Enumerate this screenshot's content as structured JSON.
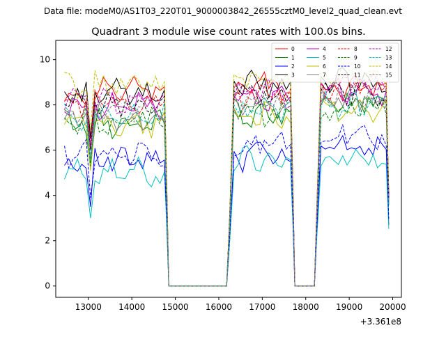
{
  "figure": {
    "suptitle": "Data file: modeM0/AS1T03_220T01_9000003842_26555cztM0_level2_quad_clean.evt"
  },
  "chart_data": {
    "type": "line",
    "title": "Quadrant 3 module wise count rates with 100.0s bins.",
    "xlabel": "",
    "ylabel": "",
    "offset_label": "+3.361e8",
    "xlim": [
      12250,
      20200
    ],
    "ylim": [
      -0.5,
      10.85
    ],
    "xticks": [
      13000,
      14000,
      15000,
      16000,
      17000,
      18000,
      19000,
      20000
    ],
    "xtick_labels": [
      "13000",
      "14000",
      "15000",
      "16000",
      "17000",
      "18000",
      "19000",
      "20000"
    ],
    "yticks": [
      0,
      2,
      4,
      6,
      8,
      10
    ],
    "ytick_labels": [
      "0",
      "2",
      "4",
      "6",
      "8",
      "10"
    ],
    "grid": false,
    "legend": {
      "placement": "top-right",
      "columns": 4
    },
    "segments": [
      {
        "x_start": 12450,
        "x_end": 14750,
        "step": 100
      },
      {
        "x_start": 16250,
        "x_end": 17650,
        "step": 100
      },
      {
        "x_start": 18250,
        "x_end": 19850,
        "step": 100
      }
    ],
    "gap_points": [
      [
        14850,
        0
      ],
      [
        15000,
        0
      ],
      [
        16000,
        0
      ],
      [
        16180,
        0
      ],
      [
        17750,
        0
      ],
      [
        18200,
        0
      ]
    ],
    "series": [
      {
        "name": "0",
        "color": "#ff0000",
        "dash": "solid",
        "level": [
          8.6,
          8.8,
          8.7
        ]
      },
      {
        "name": "1",
        "color": "#008000",
        "dash": "solid",
        "level": [
          7.2,
          7.6,
          8.1
        ]
      },
      {
        "name": "2",
        "color": "#0000ff",
        "dash": "solid",
        "level": [
          5.5,
          5.7,
          6.0
        ]
      },
      {
        "name": "3",
        "color": "#000000",
        "dash": "solid",
        "level": [
          8.5,
          8.9,
          9.0
        ]
      },
      {
        "name": "4",
        "color": "#bf00bf",
        "dash": "solid",
        "level": [
          8.0,
          8.3,
          8.6
        ]
      },
      {
        "name": "5",
        "color": "#00bfbf",
        "dash": "solid",
        "level": [
          5.0,
          5.6,
          5.6
        ]
      },
      {
        "name": "6",
        "color": "#bfbf00",
        "dash": "solid",
        "level": [
          7.1,
          7.6,
          7.9
        ]
      },
      {
        "name": "7",
        "color": "#808080",
        "dash": "solid",
        "level": [
          7.5,
          7.9,
          8.2
        ]
      },
      {
        "name": "8",
        "color": "#ff0000",
        "dash": "dashed",
        "level": [
          8.1,
          8.4,
          8.8
        ]
      },
      {
        "name": "9",
        "color": "#008000",
        "dash": "dashed",
        "level": [
          7.3,
          7.6,
          7.9
        ]
      },
      {
        "name": "10",
        "color": "#0000ff",
        "dash": "dashed",
        "level": [
          5.9,
          6.3,
          6.6
        ]
      },
      {
        "name": "11",
        "color": "#000000",
        "dash": "dashed",
        "level": [
          8.0,
          8.4,
          8.5
        ]
      },
      {
        "name": "12",
        "color": "#bf00bf",
        "dash": "dashed",
        "level": [
          8.2,
          8.5,
          8.7
        ]
      },
      {
        "name": "13",
        "color": "#00bfbf",
        "dash": "dashed",
        "level": [
          7.5,
          7.9,
          8.0
        ]
      },
      {
        "name": "14",
        "color": "#bfbf00",
        "dash": "dashed",
        "level": [
          8.9,
          9.1,
          9.3
        ]
      },
      {
        "name": "15",
        "color": "#808080",
        "dash": "dashed",
        "level": [
          7.7,
          8.0,
          8.2
        ]
      }
    ]
  }
}
